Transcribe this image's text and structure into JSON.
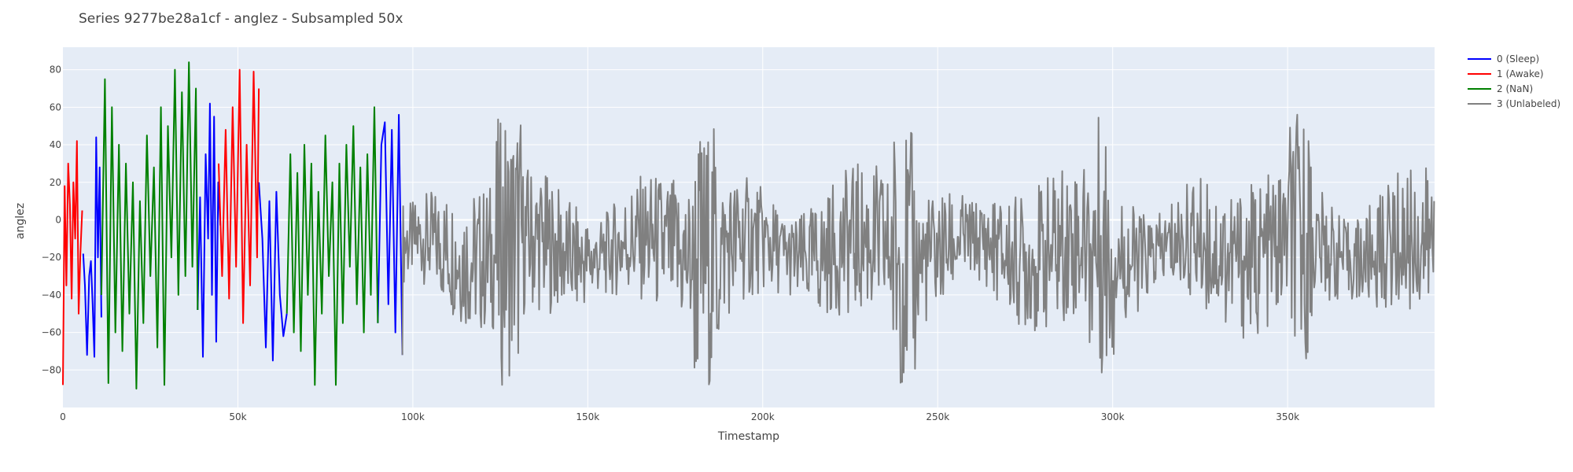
{
  "chart_data": {
    "type": "line",
    "title": "Series 9277be28a1cf - anglez - Subsampled 50x",
    "xlabel": "Timestamp",
    "ylabel": "anglez",
    "xlim": [
      0,
      392000
    ],
    "ylim": [
      -100,
      92
    ],
    "x_ticks": [
      0,
      50000,
      100000,
      150000,
      200000,
      250000,
      300000,
      350000
    ],
    "x_tick_labels": [
      "0",
      "50k",
      "100k",
      "150k",
      "200k",
      "250k",
      "300k",
      "350k"
    ],
    "y_ticks": [
      -80,
      -60,
      -40,
      -20,
      0,
      20,
      40,
      60,
      80
    ],
    "y_tick_labels": [
      "−80",
      "−60",
      "−40",
      "−20",
      "0",
      "20",
      "40",
      "60",
      "80"
    ],
    "grid": true,
    "legend_position": "top-right",
    "plot_background": "#e5ecf6",
    "series": [
      {
        "name": "0 (Sleep)",
        "color": "#0000ff",
        "segments": [
          {
            "x": [
              5800,
              6300,
              6900,
              7500,
              8000,
              8500,
              9000,
              9500,
              10000,
              10500,
              11000
            ],
            "y": [
              -18,
              -35,
              -72,
              -30,
              -22,
              -45,
              -73,
              44,
              -20,
              28,
              -52
            ]
          },
          {
            "x": [
              38500,
              39200,
              40000,
              40800,
              41500,
              42000,
              42600,
              43200,
              43800,
              44400,
              45000
            ],
            "y": [
              -48,
              12,
              -73,
              35,
              -10,
              62,
              -40,
              55,
              -65,
              20,
              -3
            ]
          },
          {
            "x": [
              56000,
              57000,
              58000,
              59000,
              60000,
              61000,
              62000,
              63000,
              64000
            ],
            "y": [
              20,
              -10,
              -68,
              10,
              -75,
              15,
              -40,
              -62,
              -50
            ]
          },
          {
            "x": [
              90000,
              91000,
              92000,
              93000,
              94000,
              95000,
              96000,
              97000
            ],
            "y": [
              -55,
              40,
              52,
              -45,
              48,
              -60,
              56,
              -72
            ]
          }
        ]
      },
      {
        "name": "1 (Awake)",
        "color": "#ff0000",
        "segments": [
          {
            "x": [
              0,
              500,
              1000,
              1500,
              2000,
              2500,
              3000,
              3500,
              4000,
              4500,
              5000,
              5500
            ],
            "y": [
              -88,
              18,
              -35,
              30,
              8,
              -42,
              20,
              -10,
              42,
              -50,
              -18,
              5
            ]
          },
          {
            "x": [
              44500,
              45500,
              46500,
              47500,
              48500,
              49500,
              50500,
              51500,
              52500,
              53500,
              54500,
              55500,
              56000
            ],
            "y": [
              30,
              -30,
              48,
              -42,
              60,
              -25,
              80,
              -55,
              40,
              -35,
              79,
              -20,
              70
            ]
          }
        ]
      },
      {
        "name": "2 (NaN)",
        "color": "#008000",
        "segments": [
          {
            "x": [
              11000,
              12000,
              13000,
              14000,
              15000,
              16000,
              17000,
              18000,
              19000,
              20000,
              21000,
              22000,
              23000,
              24000,
              25000,
              26000,
              27000,
              28000,
              29000,
              30000,
              31000,
              32000,
              33000,
              34000,
              35000,
              36000,
              37000,
              38000,
              38500
            ],
            "y": [
              -40,
              75,
              -87,
              60,
              -60,
              40,
              -70,
              30,
              -50,
              20,
              -90,
              10,
              -55,
              45,
              -30,
              28,
              -68,
              60,
              -88,
              50,
              -20,
              80,
              -40,
              68,
              -30,
              84,
              -25,
              70,
              -48
            ]
          },
          {
            "x": [
              64000,
              65000,
              66000,
              67000,
              68000,
              69000,
              70000,
              71000,
              72000,
              73000,
              74000,
              75000,
              76000,
              77000,
              78000,
              79000,
              80000,
              81000,
              82000,
              83000,
              84000,
              85000,
              86000,
              87000,
              88000,
              89000,
              90000
            ],
            "y": [
              -50,
              35,
              -60,
              25,
              -70,
              40,
              -40,
              30,
              -88,
              15,
              -50,
              45,
              -30,
              20,
              -88,
              30,
              -55,
              40,
              -25,
              50,
              -45,
              28,
              -60,
              35,
              -40,
              60,
              -55
            ]
          }
        ]
      },
      {
        "name": "3 (Unlabeled)",
        "color": "#808080",
        "segments": [
          {
            "x": [
              97000,
              392000
            ],
            "y": [
              -72,
              10
            ],
            "generated": true
          }
        ]
      }
    ]
  }
}
